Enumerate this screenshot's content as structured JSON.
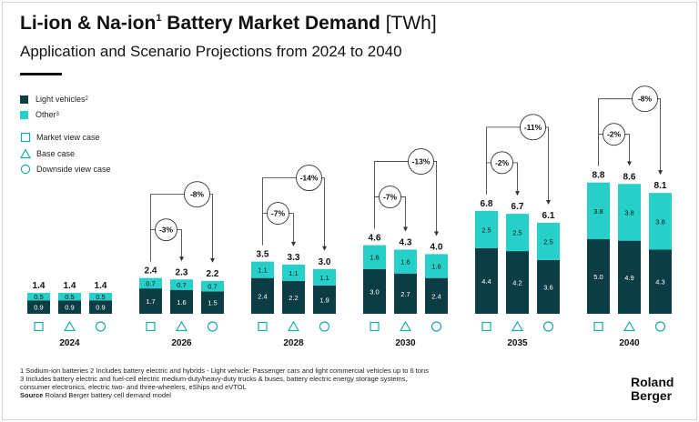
{
  "title": {
    "main": "Li-ion & Na-ion",
    "sup": "1",
    "rest": " Battery Market Demand ",
    "unit": "[TWh]"
  },
  "subtitle": "Application and Scenario Projections from 2024 to 2040",
  "legend": {
    "light_vehicles": "Light vehicles",
    "light_vehicles_sup": "2",
    "other": "Other",
    "other_sup": "3",
    "market_view": "Market view case",
    "base": "Base case",
    "downside": "Downside view case"
  },
  "colors": {
    "light_vehicles": "#0c3d44",
    "other": "#26cfc8",
    "text_dark": "#111111",
    "text_light": "#ffffff"
  },
  "chart_data": {
    "type": "bar",
    "stacked": true,
    "unit": "TWh",
    "scenarios": [
      "Market view case",
      "Base case",
      "Downside view case"
    ],
    "scenario_icons": [
      "square-icon",
      "triangle-icon",
      "circle-icon"
    ],
    "categories": [
      "2024",
      "2026",
      "2028",
      "2030",
      "2035",
      "2040"
    ],
    "groups": [
      {
        "year": "2024",
        "light": [
          0.9,
          0.9,
          0.9
        ],
        "other": [
          0.5,
          0.5,
          0.5
        ],
        "total": [
          1.4,
          1.4,
          1.4
        ]
      },
      {
        "year": "2026",
        "light": [
          1.7,
          1.6,
          1.5
        ],
        "other": [
          0.7,
          0.7,
          0.7
        ],
        "total": [
          2.4,
          2.3,
          2.2
        ]
      },
      {
        "year": "2028",
        "light": [
          2.4,
          2.2,
          1.9
        ],
        "other": [
          1.1,
          1.1,
          1.1
        ],
        "total": [
          3.5,
          3.3,
          3.0
        ]
      },
      {
        "year": "2030",
        "light": [
          3.0,
          2.7,
          2.4
        ],
        "other": [
          1.6,
          1.6,
          1.6
        ],
        "total": [
          4.6,
          4.3,
          4.0
        ]
      },
      {
        "year": "2035",
        "light": [
          4.4,
          4.2,
          3.6
        ],
        "other": [
          2.5,
          2.5,
          2.5
        ],
        "total": [
          6.8,
          6.7,
          6.1
        ]
      },
      {
        "year": "2040",
        "light": [
          5.0,
          4.9,
          4.3
        ],
        "other": [
          3.8,
          3.8,
          3.8
        ],
        "total": [
          8.8,
          8.6,
          8.1
        ]
      }
    ],
    "series": [
      {
        "name": "Light vehicles",
        "color": "#0c3d44"
      },
      {
        "name": "Other",
        "color": "#26cfc8"
      }
    ],
    "annotations": [
      {
        "year": "2026",
        "base_vs_market": "-3%",
        "downside_vs_market": "-8%"
      },
      {
        "year": "2028",
        "base_vs_market": "-7%",
        "downside_vs_market": "-14%"
      },
      {
        "year": "2030",
        "base_vs_market": "-7%",
        "downside_vs_market": "-13%"
      },
      {
        "year": "2035",
        "base_vs_market": "-2%",
        "downside_vs_market": "-11%"
      },
      {
        "year": "2040",
        "base_vs_market": "-2%",
        "downside_vs_market": "-8%"
      }
    ],
    "ylim": [
      0,
      9
    ]
  },
  "footnotes": {
    "line1": "1  Sodium-ion batteries   2 Includes battery electric and hybrids - Light vehicle: Passenger cars and light commercial vehicles up to 6 tons",
    "line2": "3  Includes battery electric and fuel-cell electric medium-duty/heavy-duty trucks & buses, battery electric energy storage systems,",
    "line3": "    consumer electronics, electric two- and three-wheelers, eShips and eVTOL",
    "source_label": "Source",
    "source_text": " Roland Berger battery cell demand model"
  },
  "logo": {
    "line1": "Roland",
    "line2": "Berger"
  }
}
